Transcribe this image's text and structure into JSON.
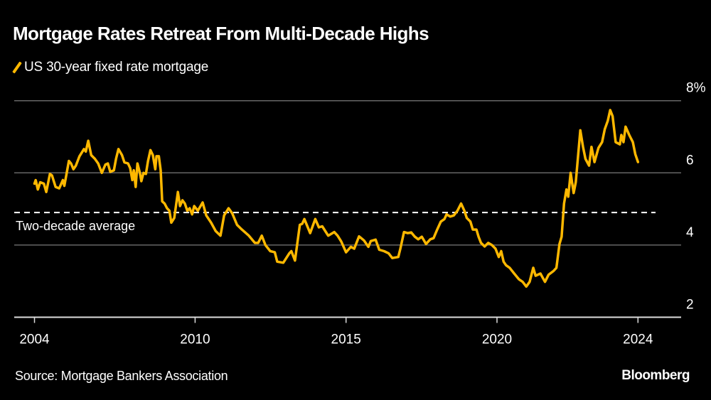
{
  "chart_data": {
    "type": "line",
    "title": "Mortgage Rates Retreat From Multi-Decade Highs",
    "legend": {
      "placement": "top-left",
      "entries": [
        "US 30-year fixed rate mortgage"
      ]
    },
    "source": "Source: Mortgage Bankers Association",
    "brand": "Bloomberg",
    "colors": {
      "series": "#FFB800",
      "background": "#000000",
      "grid": "#666666",
      "text": "#FFFFFF"
    },
    "xlim": [
      2004.68,
      2024.67
    ],
    "ylim": [
      2,
      8
    ],
    "grid": true,
    "x_ticks": [
      {
        "value": 2004.68,
        "label": "2004"
      },
      {
        "value": 2010,
        "label": "2010"
      },
      {
        "value": 2015,
        "label": "2015"
      },
      {
        "value": 2020,
        "label": "2020"
      },
      {
        "value": 2024.67,
        "label": "2024"
      }
    ],
    "y_ticks": [
      {
        "value": 8,
        "label": "8%"
      },
      {
        "value": 6,
        "label": "6"
      },
      {
        "value": 4,
        "label": "4"
      },
      {
        "value": 2,
        "label": "2"
      }
    ],
    "reference_line": {
      "label": "Two-decade average",
      "value": 4.9,
      "style": "dashed"
    },
    "series": [
      {
        "name": "US 30-year fixed rate mortgage",
        "x": [
          2004.68,
          2004.72,
          2004.79,
          2004.87,
          2004.99,
          2005.07,
          2005.19,
          2005.26,
          2005.38,
          2005.5,
          2005.62,
          2005.67,
          2005.82,
          2005.89,
          2005.97,
          2006.05,
          2006.17,
          2006.32,
          2006.38,
          2006.46,
          2006.56,
          2006.68,
          2006.79,
          2006.91,
          2007.03,
          2007.11,
          2007.19,
          2007.31,
          2007.38,
          2007.46,
          2007.58,
          2007.66,
          2007.78,
          2007.85,
          2007.92,
          2007.97,
          2008.03,
          2008.09,
          2008.17,
          2008.22,
          2008.29,
          2008.37,
          2008.44,
          2008.52,
          2008.6,
          2008.68,
          2008.72,
          2008.8,
          2008.86,
          2008.91,
          2008.99,
          2009.07,
          2009.15,
          2009.21,
          2009.31,
          2009.43,
          2009.5,
          2009.58,
          2009.66,
          2009.74,
          2009.82,
          2009.9,
          2009.97,
          2010.09,
          2010.25,
          2010.37,
          2010.53,
          2010.68,
          2010.84,
          2010.96,
          2011.11,
          2011.23,
          2011.39,
          2011.55,
          2011.78,
          2011.98,
          2012.09,
          2012.21,
          2012.33,
          2012.49,
          2012.64,
          2012.72,
          2012.92,
          2013.12,
          2013.19,
          2013.31,
          2013.47,
          2013.55,
          2013.62,
          2013.81,
          2013.98,
          2014.1,
          2014.21,
          2014.41,
          2014.61,
          2014.72,
          2014.84,
          2015.0,
          2015.16,
          2015.27,
          2015.43,
          2015.59,
          2015.74,
          2015.82,
          2015.98,
          2016.1,
          2016.26,
          2016.41,
          2016.53,
          2016.73,
          2016.8,
          2016.92,
          2017.04,
          2017.16,
          2017.28,
          2017.39,
          2017.51,
          2017.65,
          2017.79,
          2017.9,
          2018.02,
          2018.14,
          2018.26,
          2018.33,
          2018.45,
          2018.57,
          2018.69,
          2018.81,
          2018.92,
          2019.0,
          2019.12,
          2019.2,
          2019.32,
          2019.39,
          2019.47,
          2019.59,
          2019.71,
          2019.83,
          2019.95,
          2020.06,
          2020.14,
          2020.22,
          2020.3,
          2020.42,
          2020.57,
          2020.73,
          2020.85,
          2020.97,
          2021.08,
          2021.2,
          2021.28,
          2021.44,
          2021.59,
          2021.71,
          2021.87,
          2021.97,
          2022.07,
          2022.14,
          2022.22,
          2022.3,
          2022.36,
          2022.44,
          2022.54,
          2022.61,
          2022.76,
          2022.85,
          2022.93,
          2023.05,
          2023.13,
          2023.23,
          2023.36,
          2023.48,
          2023.57,
          2023.67,
          2023.75,
          2023.83,
          2023.93,
          2024.07,
          2024.12,
          2024.19,
          2024.26,
          2024.38,
          2024.5,
          2024.58,
          2024.67
        ],
        "y": [
          5.7,
          5.8,
          5.54,
          5.74,
          5.7,
          5.47,
          5.97,
          5.93,
          5.61,
          5.57,
          5.8,
          5.64,
          6.33,
          6.26,
          6.1,
          6.2,
          6.46,
          6.66,
          6.59,
          6.89,
          6.49,
          6.39,
          6.26,
          6.0,
          6.23,
          6.26,
          6.03,
          6.07,
          6.39,
          6.66,
          6.49,
          6.29,
          6.26,
          6.13,
          5.8,
          6.07,
          5.61,
          6.26,
          6.0,
          5.77,
          6.0,
          5.97,
          6.33,
          6.63,
          6.49,
          6.1,
          6.46,
          6.46,
          6.07,
          5.21,
          5.15,
          5.02,
          4.95,
          4.62,
          4.75,
          5.47,
          5.08,
          5.24,
          5.15,
          4.95,
          5.02,
          4.85,
          5.08,
          4.95,
          5.18,
          4.82,
          4.62,
          4.39,
          4.26,
          4.82,
          5.02,
          4.88,
          4.56,
          4.43,
          4.26,
          4.06,
          4.06,
          4.26,
          4.0,
          3.83,
          3.8,
          3.54,
          3.51,
          3.77,
          3.83,
          3.57,
          4.56,
          4.59,
          4.72,
          4.33,
          4.72,
          4.49,
          4.52,
          4.26,
          4.36,
          4.26,
          4.1,
          3.8,
          3.95,
          3.9,
          4.24,
          4.13,
          3.95,
          4.11,
          4.15,
          3.87,
          3.83,
          3.77,
          3.64,
          3.67,
          3.9,
          4.36,
          4.33,
          4.35,
          4.23,
          4.16,
          4.23,
          4.03,
          4.16,
          4.19,
          4.43,
          4.65,
          4.72,
          4.85,
          4.79,
          4.82,
          4.95,
          5.15,
          4.95,
          4.75,
          4.65,
          4.43,
          4.43,
          4.23,
          4.06,
          3.96,
          4.06,
          4.0,
          3.9,
          3.67,
          3.83,
          3.54,
          3.44,
          3.37,
          3.21,
          3.05,
          2.98,
          2.85,
          2.98,
          3.37,
          3.15,
          3.21,
          2.98,
          3.18,
          3.28,
          3.37,
          4.03,
          4.23,
          5.15,
          5.54,
          5.34,
          6.0,
          5.44,
          5.74,
          7.18,
          6.72,
          6.39,
          6.2,
          6.72,
          6.3,
          6.69,
          6.85,
          7.21,
          7.44,
          7.74,
          7.57,
          6.85,
          6.79,
          7.05,
          6.85,
          7.28,
          7.05,
          6.85,
          6.52,
          6.3
        ]
      }
    ]
  }
}
